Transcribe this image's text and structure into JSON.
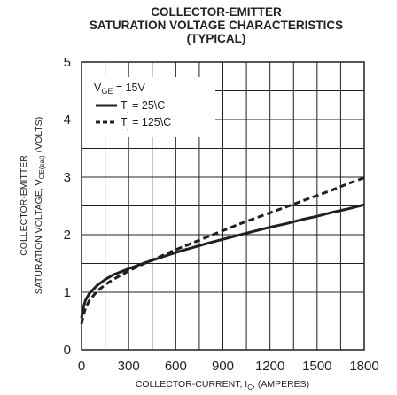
{
  "chart_data": {
    "type": "line",
    "title": [
      "COLLECTOR-EMITTER",
      "SATURATION VOLTAGE CHARACTERISTICS",
      "(TYPICAL)"
    ],
    "xlabel": "COLLECTOR-CURRENT, I",
    "xlabel_sub": "C",
    "xlabel_tail": ", (AMPERES)",
    "ylabel_line1": "COLLECTOR-EMITTER",
    "ylabel_line2": "SATURATION VOLTAGE, V",
    "ylabel_sub": "CE(sat)",
    "ylabel_tail": " (VOLTS)",
    "xlim": [
      0,
      1800
    ],
    "ylim": [
      0,
      5
    ],
    "xticks": [
      "0",
      "300",
      "600",
      "900",
      "1200",
      "1500",
      "1800"
    ],
    "yticks": [
      "0",
      "1",
      "2",
      "3",
      "4",
      "5"
    ],
    "grid": true,
    "legend_header": "V",
    "legend_header_sub": "GE",
    "legend_header_tail": " = 15V",
    "series": [
      {
        "name": "T",
        "name_sub": "j",
        "name_tail": " = 25\\C",
        "style": "solid",
        "x": [
          0,
          10,
          25,
          50,
          100,
          150,
          200,
          300,
          400,
          500,
          600,
          700,
          800,
          900,
          1000,
          1100,
          1200,
          1300,
          1400,
          1500,
          1600,
          1700,
          1800
        ],
        "y": [
          0.55,
          0.72,
          0.86,
          0.98,
          1.12,
          1.22,
          1.3,
          1.41,
          1.51,
          1.6,
          1.69,
          1.77,
          1.85,
          1.92,
          1.99,
          2.06,
          2.13,
          2.19,
          2.26,
          2.32,
          2.39,
          2.45,
          2.52
        ]
      },
      {
        "name": "T",
        "name_sub": "j",
        "name_tail": " = 125\\C",
        "style": "dashed",
        "x": [
          0,
          10,
          25,
          50,
          100,
          150,
          200,
          300,
          400,
          500,
          600,
          700,
          800,
          900,
          1000,
          1100,
          1200,
          1300,
          1400,
          1500,
          1600,
          1700,
          1800
        ],
        "y": [
          0.45,
          0.58,
          0.72,
          0.86,
          1.02,
          1.13,
          1.22,
          1.37,
          1.5,
          1.62,
          1.74,
          1.85,
          1.96,
          2.07,
          2.18,
          2.28,
          2.38,
          2.48,
          2.58,
          2.68,
          2.78,
          2.89,
          2.99
        ]
      }
    ]
  }
}
